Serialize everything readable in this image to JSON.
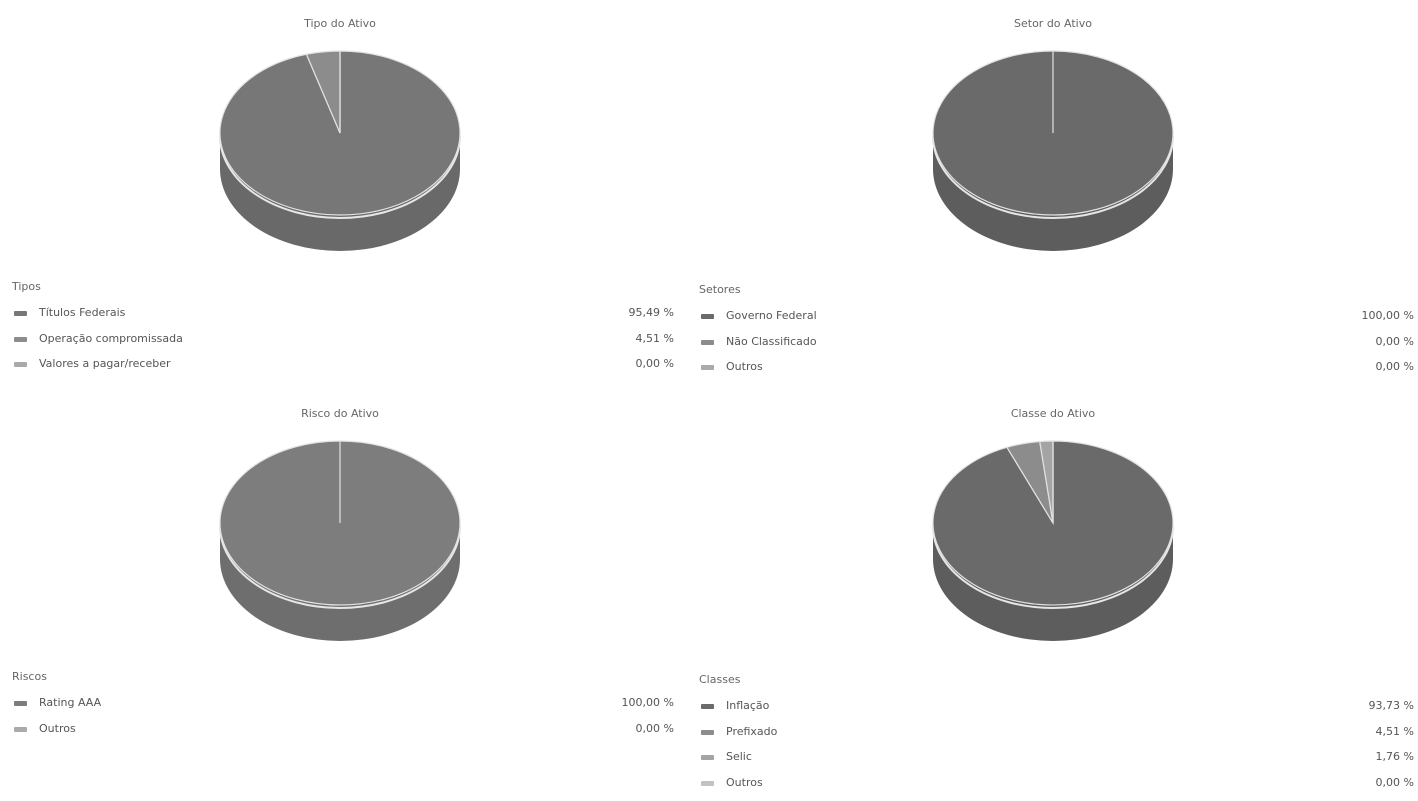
{
  "colors": {
    "slice_dark": "#6e6e6e",
    "slice_mid": "#868686",
    "slice_light": "#a4a4a4",
    "slice_pale": "#c2c2c2"
  },
  "chart_data": [
    {
      "type": "pie",
      "title": "Tipo do Ativo",
      "legend_title": "Tipos",
      "categories": [
        "Títulos Federais",
        "Operação compromissada",
        "Valores a pagar/receber"
      ],
      "values": [
        95.49,
        4.51,
        0.0
      ],
      "value_labels": [
        "95,49 %",
        "4,51 %",
        "0,00 %"
      ],
      "colors": [
        "#777777",
        "#8c8c8c",
        "#aaaaaa"
      ]
    },
    {
      "type": "pie",
      "title": "Setor do Ativo",
      "legend_title": "Setores",
      "categories": [
        "Governo Federal",
        "Não Classificado",
        "Outros"
      ],
      "values": [
        100.0,
        0.0,
        0.0
      ],
      "value_labels": [
        "100,00 %",
        "0,00 %",
        "0,00 %"
      ],
      "colors": [
        "#6a6a6a",
        "#8c8c8c",
        "#aaaaaa"
      ]
    },
    {
      "type": "pie",
      "title": "Risco do Ativo",
      "legend_title": "Riscos",
      "categories": [
        "Rating AAA",
        "Outros"
      ],
      "values": [
        100.0,
        0.0
      ],
      "value_labels": [
        "100,00 %",
        "0,00 %"
      ],
      "colors": [
        "#7d7d7d",
        "#aaaaaa"
      ]
    },
    {
      "type": "pie",
      "title": "Classe do Ativo",
      "legend_title": "Classes",
      "categories": [
        "Inflação",
        "Prefixado",
        "Selic",
        "Outros"
      ],
      "values": [
        93.73,
        4.51,
        1.76,
        0.0
      ],
      "value_labels": [
        "93,73 %",
        "4,51 %",
        "1,76 %",
        "0,00 %"
      ],
      "colors": [
        "#6a6a6a",
        "#8c8c8c",
        "#a4a4a4",
        "#c2c2c2"
      ]
    }
  ]
}
